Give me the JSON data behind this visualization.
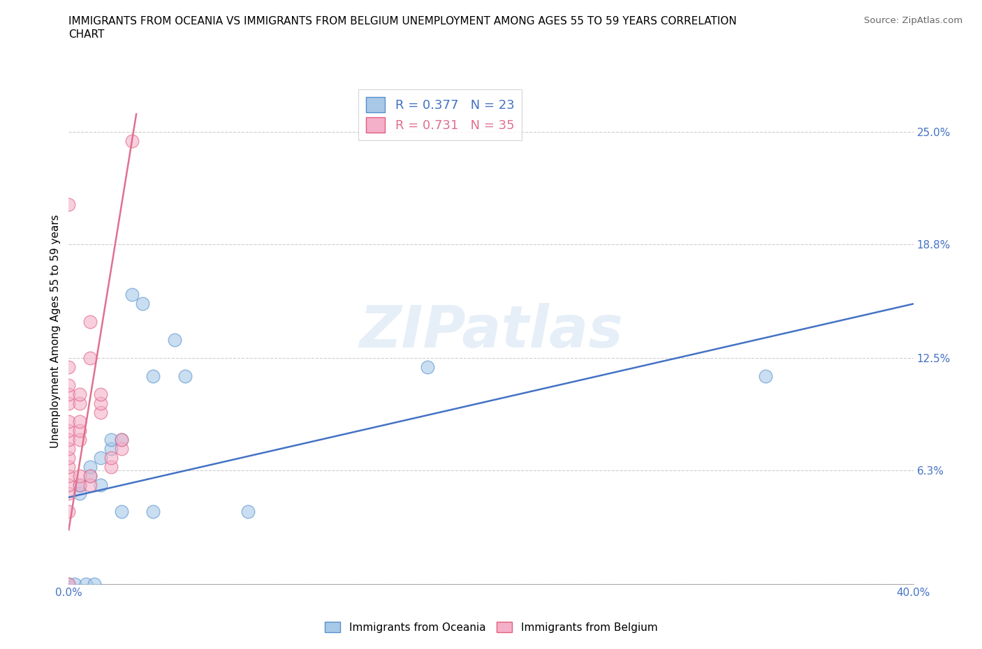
{
  "title_line1": "IMMIGRANTS FROM OCEANIA VS IMMIGRANTS FROM BELGIUM UNEMPLOYMENT AMONG AGES 55 TO 59 YEARS CORRELATION",
  "title_line2": "CHART",
  "source_text": "Source: ZipAtlas.com",
  "ylabel": "Unemployment Among Ages 55 to 59 years",
  "watermark": "ZIPatlas",
  "xmin": 0.0,
  "xmax": 0.4,
  "ymin": 0.0,
  "ymax": 0.28,
  "yticks": [
    0.0,
    0.063,
    0.125,
    0.188,
    0.25
  ],
  "ytick_labels": [
    "",
    "6.3%",
    "12.5%",
    "18.8%",
    "25.0%"
  ],
  "xticks": [
    0.0,
    0.1,
    0.2,
    0.3,
    0.4
  ],
  "xtick_labels": [
    "0.0%",
    "",
    "",
    "",
    "40.0%"
  ],
  "legend_blue_r": "0.377",
  "legend_blue_n": "23",
  "legend_pink_r": "0.731",
  "legend_pink_n": "35",
  "blue_fill": "#A8C8E8",
  "pink_fill": "#F4B0C8",
  "blue_edge": "#5590CC",
  "pink_edge": "#E06080",
  "trendline_blue": "#4472C4",
  "trendline_pink": "#E07090",
  "oceania_scatter": [
    [
      0.0,
      0.0
    ],
    [
      0.003,
      0.0
    ],
    [
      0.005,
      0.05
    ],
    [
      0.005,
      0.055
    ],
    [
      0.008,
      0.0
    ],
    [
      0.01,
      0.06
    ],
    [
      0.01,
      0.065
    ],
    [
      0.012,
      0.0
    ],
    [
      0.015,
      0.055
    ],
    [
      0.015,
      0.07
    ],
    [
      0.02,
      0.075
    ],
    [
      0.02,
      0.08
    ],
    [
      0.025,
      0.04
    ],
    [
      0.025,
      0.08
    ],
    [
      0.03,
      0.16
    ],
    [
      0.035,
      0.155
    ],
    [
      0.04,
      0.04
    ],
    [
      0.04,
      0.115
    ],
    [
      0.05,
      0.135
    ],
    [
      0.055,
      0.115
    ],
    [
      0.085,
      0.04
    ],
    [
      0.17,
      0.12
    ],
    [
      0.33,
      0.115
    ]
  ],
  "belgium_scatter": [
    [
      0.0,
      0.0
    ],
    [
      0.0,
      0.04
    ],
    [
      0.0,
      0.05
    ],
    [
      0.0,
      0.055
    ],
    [
      0.0,
      0.06
    ],
    [
      0.0,
      0.065
    ],
    [
      0.0,
      0.07
    ],
    [
      0.0,
      0.075
    ],
    [
      0.0,
      0.08
    ],
    [
      0.0,
      0.085
    ],
    [
      0.0,
      0.09
    ],
    [
      0.0,
      0.1
    ],
    [
      0.0,
      0.105
    ],
    [
      0.0,
      0.11
    ],
    [
      0.0,
      0.12
    ],
    [
      0.0,
      0.21
    ],
    [
      0.005,
      0.055
    ],
    [
      0.005,
      0.06
    ],
    [
      0.005,
      0.08
    ],
    [
      0.005,
      0.085
    ],
    [
      0.005,
      0.09
    ],
    [
      0.005,
      0.1
    ],
    [
      0.005,
      0.105
    ],
    [
      0.01,
      0.055
    ],
    [
      0.01,
      0.06
    ],
    [
      0.01,
      0.125
    ],
    [
      0.01,
      0.145
    ],
    [
      0.015,
      0.095
    ],
    [
      0.015,
      0.1
    ],
    [
      0.015,
      0.105
    ],
    [
      0.02,
      0.065
    ],
    [
      0.02,
      0.07
    ],
    [
      0.025,
      0.075
    ],
    [
      0.025,
      0.08
    ],
    [
      0.03,
      0.245
    ]
  ],
  "blue_trend_x": [
    0.0,
    0.4
  ],
  "blue_trend_y": [
    0.048,
    0.155
  ],
  "pink_trend_x": [
    0.0,
    0.032
  ],
  "pink_trend_y": [
    0.03,
    0.26
  ]
}
